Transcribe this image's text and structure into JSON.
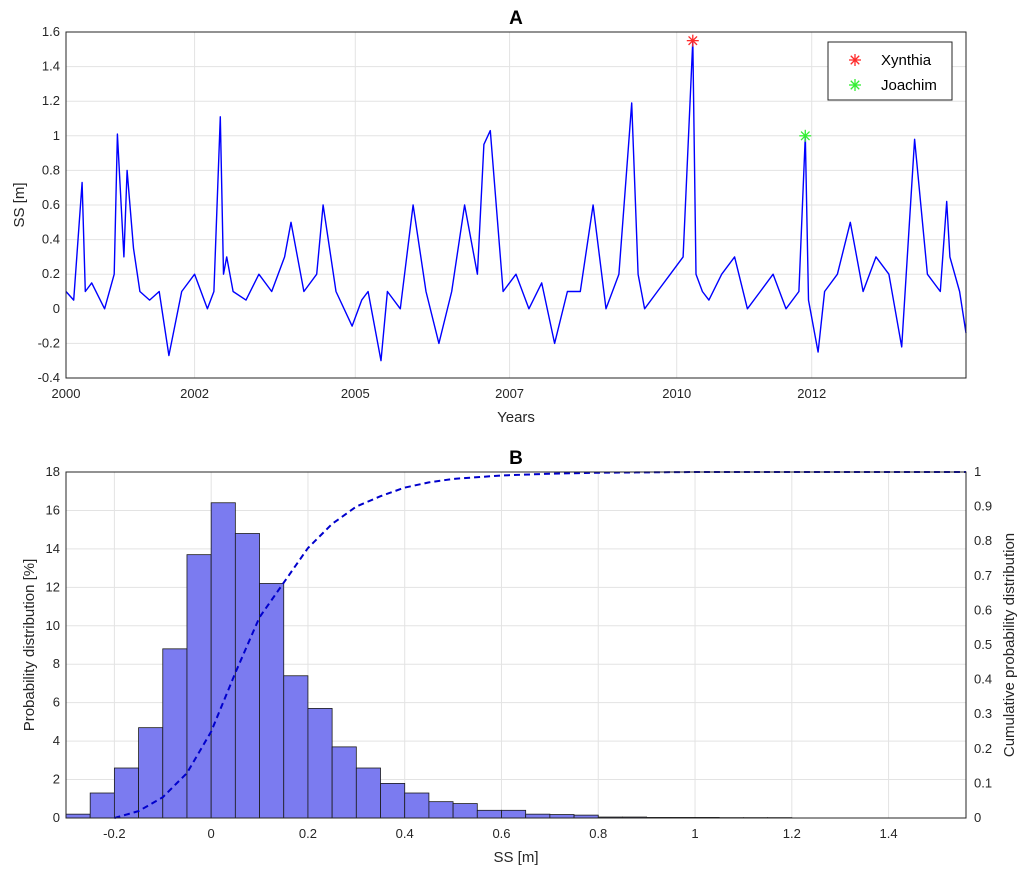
{
  "chart_data": [
    {
      "type": "line",
      "title": "A",
      "xlabel": "Years",
      "ylabel": "SS [m]",
      "xlim": [
        2000.0,
        2014.0
      ],
      "ylim": [
        -0.4,
        1.6
      ],
      "x_tick_labels": [
        "2000",
        "2002",
        "2005",
        "2007",
        "2010",
        "2012"
      ],
      "x_tick_values": [
        2000.0,
        2002.0,
        2004.5,
        2006.9,
        2009.5,
        2011.6
      ],
      "y_ticks": [
        -0.4,
        -0.2,
        0,
        0.2,
        0.4,
        0.6,
        0.8,
        1,
        1.2,
        1.4,
        1.6
      ],
      "grid": true,
      "legend_position": "top-right",
      "series": [
        {
          "name": "",
          "color": "#0000ff",
          "x": [
            2000.0,
            2000.12,
            2000.25,
            2000.3,
            2000.4,
            2000.6,
            2000.75,
            2000.8,
            2000.9,
            2000.95,
            2001.05,
            2001.15,
            2001.3,
            2001.45,
            2001.6,
            2001.8,
            2002.0,
            2002.2,
            2002.3,
            2002.4,
            2002.45,
            2002.5,
            2002.6,
            2002.8,
            2003.0,
            2003.2,
            2003.4,
            2003.5,
            2003.7,
            2003.9,
            2004.0,
            2004.2,
            2004.45,
            2004.6,
            2004.7,
            2004.9,
            2005.0,
            2005.2,
            2005.4,
            2005.6,
            2005.8,
            2006.0,
            2006.2,
            2006.4,
            2006.5,
            2006.6,
            2006.8,
            2007.0,
            2007.2,
            2007.4,
            2007.6,
            2007.8,
            2008.0,
            2008.2,
            2008.4,
            2008.6,
            2008.8,
            2008.9,
            2009.0,
            2009.2,
            2009.4,
            2009.6,
            2009.75,
            2009.8,
            2009.9,
            2010.0,
            2010.2,
            2010.4,
            2010.6,
            2010.8,
            2011.0,
            2011.2,
            2011.4,
            2011.5,
            2011.55,
            2011.7,
            2011.8,
            2012.0,
            2012.2,
            2012.4,
            2012.6,
            2012.8,
            2013.0,
            2013.2,
            2013.4,
            2013.6,
            2013.7,
            2013.75,
            2013.9,
            2014.0
          ],
          "y": [
            0.1,
            0.05,
            0.73,
            0.1,
            0.15,
            0.0,
            0.2,
            1.01,
            0.3,
            0.8,
            0.35,
            0.1,
            0.05,
            0.1,
            -0.27,
            0.1,
            0.2,
            0.0,
            0.1,
            1.11,
            0.2,
            0.3,
            0.1,
            0.05,
            0.2,
            0.1,
            0.3,
            0.5,
            0.1,
            0.2,
            0.6,
            0.1,
            -0.1,
            0.05,
            0.1,
            -0.3,
            0.1,
            0.0,
            0.6,
            0.1,
            -0.2,
            0.1,
            0.6,
            0.2,
            0.95,
            1.03,
            0.1,
            0.2,
            0.0,
            0.15,
            -0.2,
            0.1,
            0.1,
            0.6,
            0.0,
            0.2,
            1.19,
            0.2,
            0.0,
            0.1,
            0.2,
            0.3,
            1.55,
            0.2,
            0.1,
            0.05,
            0.2,
            0.3,
            0.0,
            0.1,
            0.2,
            0.0,
            0.1,
            1.0,
            0.05,
            -0.25,
            0.1,
            0.2,
            0.5,
            0.1,
            0.3,
            0.2,
            -0.22,
            0.98,
            0.2,
            0.1,
            0.62,
            0.3,
            0.1,
            -0.14
          ]
        }
      ],
      "markers": [
        {
          "name": "Xynthia",
          "x": 2009.75,
          "y": 1.55,
          "color": "#ff2a2a"
        },
        {
          "name": "Joachim",
          "x": 2011.5,
          "y": 1.0,
          "color": "#33ee33"
        }
      ]
    },
    {
      "type": "bar",
      "title": "B",
      "xlabel": "SS [m]",
      "ylabel": "Probability distribution [%]",
      "y2label": "Cumulative probability distribution",
      "xlim": [
        -0.3,
        1.56
      ],
      "ylim": [
        0,
        18
      ],
      "y2lim": [
        0,
        1
      ],
      "x_ticks": [
        -0.2,
        0,
        0.2,
        0.4,
        0.6,
        0.8,
        1,
        1.2,
        1.4
      ],
      "y_ticks": [
        0,
        2,
        4,
        6,
        8,
        10,
        12,
        14,
        16,
        18
      ],
      "y2_ticks": [
        0,
        0.1,
        0.2,
        0.3,
        0.4,
        0.5,
        0.6,
        0.7,
        0.8,
        0.9,
        1
      ],
      "grid": true,
      "bin_width": 0.05,
      "bar_color": "#7b7bf0",
      "bins": [
        {
          "x": -0.275,
          "value": 0.2
        },
        {
          "x": -0.225,
          "value": 1.3
        },
        {
          "x": -0.175,
          "value": 2.6
        },
        {
          "x": -0.125,
          "value": 4.7
        },
        {
          "x": -0.075,
          "value": 8.8
        },
        {
          "x": -0.025,
          "value": 13.7
        },
        {
          "x": 0.025,
          "value": 16.4
        },
        {
          "x": 0.075,
          "value": 14.8
        },
        {
          "x": 0.125,
          "value": 12.2
        },
        {
          "x": 0.175,
          "value": 7.4
        },
        {
          "x": 0.225,
          "value": 5.7
        },
        {
          "x": 0.275,
          "value": 3.7
        },
        {
          "x": 0.325,
          "value": 2.6
        },
        {
          "x": 0.375,
          "value": 1.8
        },
        {
          "x": 0.425,
          "value": 1.3
        },
        {
          "x": 0.475,
          "value": 0.85
        },
        {
          "x": 0.525,
          "value": 0.75
        },
        {
          "x": 0.575,
          "value": 0.4
        },
        {
          "x": 0.625,
          "value": 0.4
        },
        {
          "x": 0.675,
          "value": 0.2
        },
        {
          "x": 0.725,
          "value": 0.18
        },
        {
          "x": 0.775,
          "value": 0.15
        },
        {
          "x": 0.825,
          "value": 0.05
        },
        {
          "x": 0.875,
          "value": 0.05
        },
        {
          "x": 0.925,
          "value": 0.03
        },
        {
          "x": 0.975,
          "value": 0.03
        },
        {
          "x": 1.025,
          "value": 0.03
        },
        {
          "x": 1.075,
          "value": 0.02
        },
        {
          "x": 1.125,
          "value": 0.02
        },
        {
          "x": 1.175,
          "value": 0.02
        }
      ],
      "cdf": {
        "color": "#0000cc",
        "x": [
          -0.2,
          -0.15,
          -0.1,
          -0.05,
          0.0,
          0.05,
          0.1,
          0.15,
          0.2,
          0.25,
          0.3,
          0.35,
          0.4,
          0.45,
          0.5,
          0.6,
          0.7,
          0.8,
          1.0,
          1.2,
          1.56
        ],
        "y": [
          0.0,
          0.02,
          0.06,
          0.13,
          0.25,
          0.42,
          0.58,
          0.68,
          0.78,
          0.85,
          0.9,
          0.93,
          0.955,
          0.97,
          0.98,
          0.99,
          0.995,
          0.998,
          1.0,
          1.0,
          1.0
        ]
      }
    }
  ]
}
